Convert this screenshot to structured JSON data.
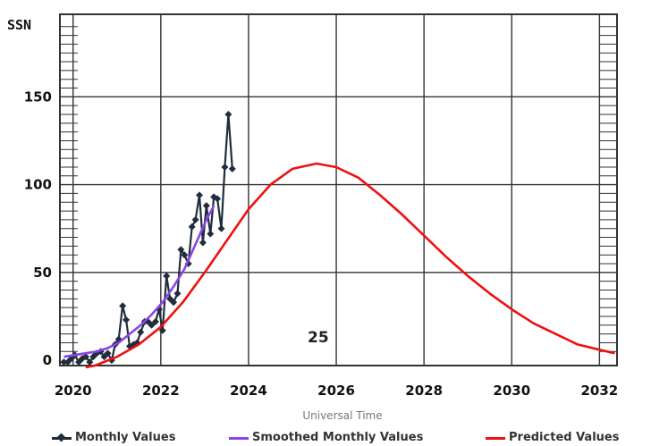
{
  "chart_data": {
    "type": "line",
    "ylabel": "SSN",
    "xlabel": "Universal Time",
    "xlim": [
      2019.7,
      2032.4
    ],
    "ylim": [
      -3,
      197
    ],
    "x_ticks": [
      2020,
      2022,
      2024,
      2026,
      2028,
      2030,
      2032
    ],
    "y_ticks": [
      0,
      50,
      100,
      150
    ],
    "grid": true,
    "annotation": "25",
    "legend_position": "bottom",
    "series": [
      {
        "name": "Monthly Values",
        "color": "#1f2d3d",
        "marker": "diamond",
        "points": [
          [
            2019.79,
            -1
          ],
          [
            2019.88,
            -1
          ],
          [
            2019.96,
            1
          ],
          [
            2020.04,
            3
          ],
          [
            2020.13,
            -1
          ],
          [
            2020.21,
            1
          ],
          [
            2020.29,
            2
          ],
          [
            2020.38,
            -1
          ],
          [
            2020.46,
            2
          ],
          [
            2020.54,
            4
          ],
          [
            2020.63,
            5
          ],
          [
            2020.71,
            2
          ],
          [
            2020.79,
            4
          ],
          [
            2020.88,
            0
          ],
          [
            2020.96,
            9
          ],
          [
            2021.04,
            12
          ],
          [
            2021.13,
            31
          ],
          [
            2021.21,
            23
          ],
          [
            2021.29,
            8
          ],
          [
            2021.38,
            9
          ],
          [
            2021.46,
            10
          ],
          [
            2021.54,
            16
          ],
          [
            2021.63,
            22
          ],
          [
            2021.71,
            22
          ],
          [
            2021.79,
            20
          ],
          [
            2021.88,
            22
          ],
          [
            2021.96,
            29
          ],
          [
            2022.04,
            17
          ],
          [
            2022.13,
            48
          ],
          [
            2022.21,
            35
          ],
          [
            2022.29,
            33
          ],
          [
            2022.38,
            38
          ],
          [
            2022.46,
            63
          ],
          [
            2022.54,
            60
          ],
          [
            2022.63,
            55
          ],
          [
            2022.71,
            76
          ],
          [
            2022.79,
            80
          ],
          [
            2022.88,
            94
          ],
          [
            2022.96,
            67
          ],
          [
            2023.04,
            88
          ],
          [
            2023.13,
            72
          ],
          [
            2023.21,
            93
          ],
          [
            2023.29,
            92
          ],
          [
            2023.38,
            75
          ],
          [
            2023.46,
            110
          ],
          [
            2023.54,
            140
          ],
          [
            2023.63,
            109
          ]
        ]
      },
      {
        "name": "Smoothed Monthly Values",
        "color": "#8a44e8",
        "points": [
          [
            2019.79,
            2
          ],
          [
            2020.04,
            3
          ],
          [
            2020.29,
            4
          ],
          [
            2020.54,
            5
          ],
          [
            2020.79,
            7
          ],
          [
            2021.04,
            10
          ],
          [
            2021.29,
            15
          ],
          [
            2021.54,
            20
          ],
          [
            2021.79,
            26
          ],
          [
            2022.04,
            33
          ],
          [
            2022.29,
            42
          ],
          [
            2022.54,
            52
          ],
          [
            2022.79,
            66
          ],
          [
            2023.04,
            80
          ],
          [
            2023.21,
            88
          ]
        ]
      },
      {
        "name": "Predicted Values",
        "color": "#ee1111",
        "peak_x": 2025.55,
        "peak_y": 112,
        "points": [
          [
            2020.29,
            -4
          ],
          [
            2020.5,
            -3
          ],
          [
            2021.0,
            2
          ],
          [
            2021.5,
            9
          ],
          [
            2022.0,
            19
          ],
          [
            2022.5,
            33
          ],
          [
            2023.0,
            50
          ],
          [
            2023.5,
            68
          ],
          [
            2024.0,
            86
          ],
          [
            2024.5,
            100
          ],
          [
            2025.0,
            109
          ],
          [
            2025.55,
            112
          ],
          [
            2026.0,
            110
          ],
          [
            2026.5,
            104
          ],
          [
            2027.0,
            94
          ],
          [
            2027.5,
            83
          ],
          [
            2028.0,
            71
          ],
          [
            2028.5,
            59
          ],
          [
            2029.0,
            48
          ],
          [
            2029.5,
            38
          ],
          [
            2030.0,
            29
          ],
          [
            2030.5,
            21
          ],
          [
            2031.0,
            15
          ],
          [
            2031.5,
            9
          ],
          [
            2032.0,
            6
          ],
          [
            2032.35,
            4
          ]
        ]
      }
    ]
  }
}
